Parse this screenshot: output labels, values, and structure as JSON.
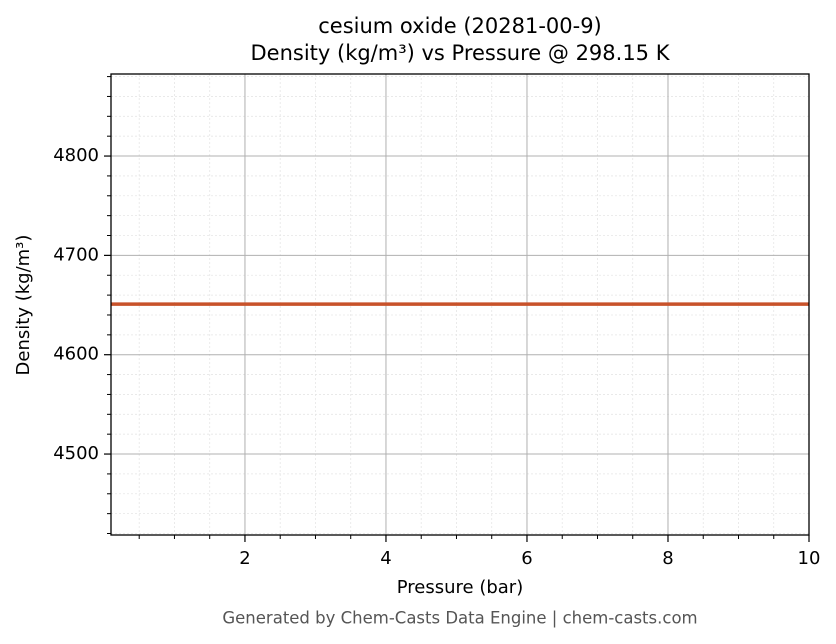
{
  "chart_data": {
    "type": "line",
    "title": "cesium oxide (20281-00-9)",
    "subtitle": "Density (kg/m³) vs Pressure @ 298.15 K",
    "x_label": "Pressure (bar)",
    "y_label": "Density (kg/m³)",
    "footer": "Generated by Chem-Casts Data Engine | chem-casts.com",
    "x": [
      0.1,
      10
    ],
    "series": [
      {
        "name": "Density",
        "color": "#c8522a",
        "values": [
          4650.9,
          4650.9
        ]
      }
    ],
    "xlim": [
      0.1,
      10
    ],
    "ylim": [
      4418.5,
      4882.6
    ],
    "xticks": [
      2,
      4,
      6,
      8,
      10
    ],
    "yticks": [
      4500,
      4600,
      4700,
      4800
    ],
    "xminor": [
      0.5,
      1,
      1.5,
      2.5,
      3,
      3.5,
      4.5,
      5,
      5.5,
      6.5,
      7,
      7.5,
      8.5,
      9,
      9.5
    ],
    "yminor": [
      4420,
      4440,
      4460,
      4480,
      4520,
      4540,
      4560,
      4580,
      4620,
      4640,
      4660,
      4680,
      4720,
      4740,
      4760,
      4780,
      4820,
      4840,
      4860,
      4880
    ],
    "grid": true
  }
}
